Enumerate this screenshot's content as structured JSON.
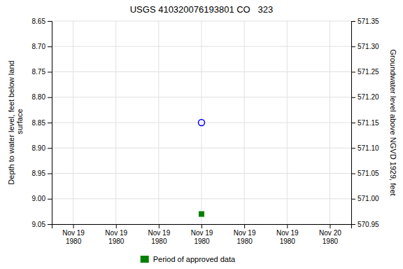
{
  "chart_data": {
    "type": "scatter",
    "title": "USGS 410320076193801 CO   323",
    "y_label": "Depth to water level, feet below land\n surface",
    "y2_label": "Groundwater level above NGVD 1929, feet",
    "categories": [
      "Nov 19\n1980",
      "Nov 19\n1980",
      "Nov 19\n1980",
      "Nov 19\n1980",
      "Nov 19\n1980",
      "Nov 19\n1980",
      "Nov 20\n1980"
    ],
    "series": [
      {
        "color": "blue",
        "marker": "circle-open",
        "values": [
          null,
          null,
          null,
          8.85,
          null,
          null,
          null
        ]
      },
      {
        "name": "Period of approved data",
        "color": "#008000",
        "marker": "square",
        "values": [
          null,
          null,
          null,
          9.03,
          null,
          null,
          null
        ]
      }
    ],
    "ylim": [
      9.05,
      8.65
    ],
    "yticks": [
      8.65,
      {
        "value": 8.7,
        "label": "8.70"
      },
      8.75,
      {
        "value": 8.8,
        "label": "8.80"
      },
      8.85,
      {
        "value": 8.9,
        "label": "8.90"
      },
      8.95,
      {
        "value": 9,
        "label": "9.00"
      },
      9.05
    ],
    "y2lim": [
      570.95,
      571.35
    ],
    "y2ticks": [
      571.35,
      {
        "value": 571.3,
        "label": "571.30"
      },
      571.25,
      {
        "value": 571.2,
        "label": "571.20"
      },
      571.15,
      {
        "value": 571.1,
        "label": "571.10"
      },
      571.05,
      {
        "value": 571,
        "label": "571.00"
      },
      570.95
    ],
    "grid": true,
    "legend": "bottom"
  }
}
